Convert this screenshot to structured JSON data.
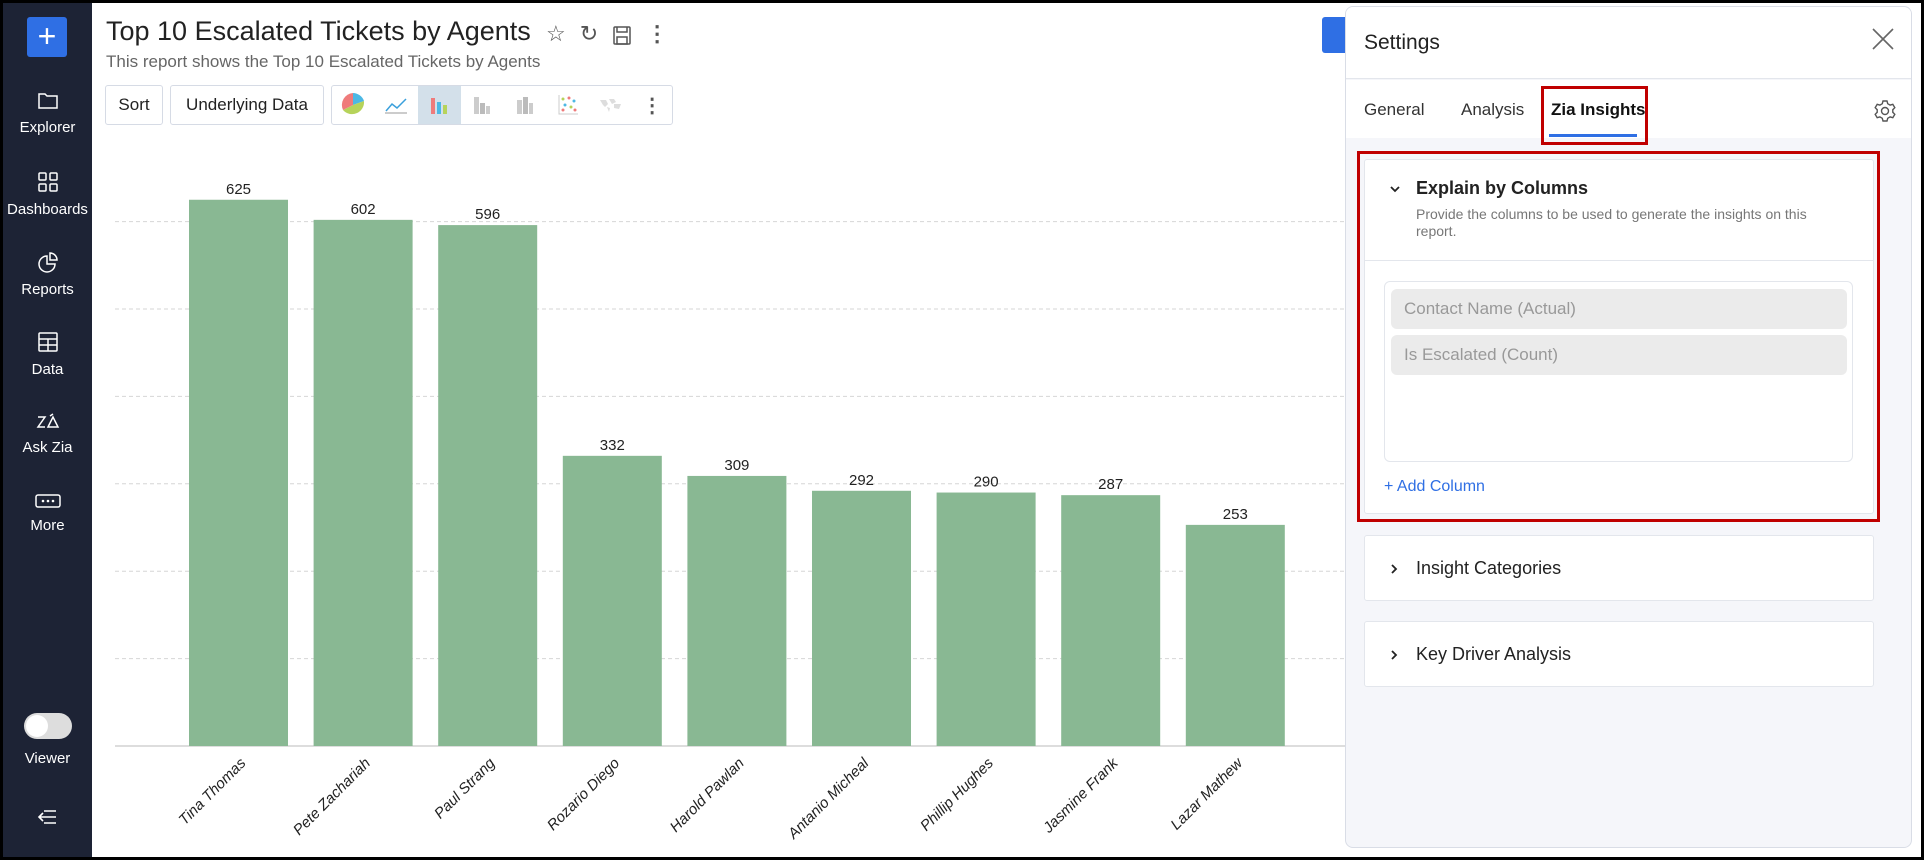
{
  "sidebar": {
    "items": [
      {
        "label": "Explorer",
        "icon": "folder-icon"
      },
      {
        "label": "Dashboards",
        "icon": "grid-icon"
      },
      {
        "label": "Reports",
        "icon": "pie-icon"
      },
      {
        "label": "Data",
        "icon": "table-icon"
      },
      {
        "label": "Ask Zia",
        "icon": "zia-icon"
      },
      {
        "label": "More",
        "icon": "more-icon"
      }
    ],
    "viewer_label": "Viewer",
    "viewer_on": false
  },
  "report": {
    "title": "Top 10 Escalated Tickets by Agents",
    "subtitle": "This report shows the Top 10 Escalated Tickets by Agents"
  },
  "toolbar": {
    "sort": "Sort",
    "underlying": "Underlying Data",
    "selected_chart_type": "bar"
  },
  "chart_data": {
    "type": "bar",
    "categories": [
      "Tina Thomas",
      "Pete Zachariah",
      "Paul Strang",
      "Rozario Diego",
      "Harold Pawlan",
      "Antanio Micheal",
      "Phillip Hughes",
      "Jasmine Frank",
      "Lazar Mathew"
    ],
    "values": [
      625,
      602,
      596,
      332,
      309,
      292,
      290,
      287,
      253
    ],
    "ylim": [
      0,
      700
    ],
    "gridlines": [
      100,
      200,
      300,
      400,
      500,
      600
    ],
    "grid": true,
    "color": "#89b893"
  },
  "settings": {
    "title": "Settings",
    "tabs": [
      "General",
      "Analysis",
      "Zia Insights"
    ],
    "active_tab": "Zia Insights",
    "explain": {
      "title": "Explain by Columns",
      "description": "Provide the columns to be used to generate the insights on this report.",
      "columns": [
        "Contact Name (Actual)",
        "Is Escalated (Count)"
      ],
      "add_label": "+ Add Column"
    },
    "sections": [
      "Insight Categories",
      "Key Driver Analysis"
    ]
  },
  "colors": {
    "accent": "#2f6fe4",
    "sidebar": "#1d2335",
    "highlight": "#c00000"
  }
}
